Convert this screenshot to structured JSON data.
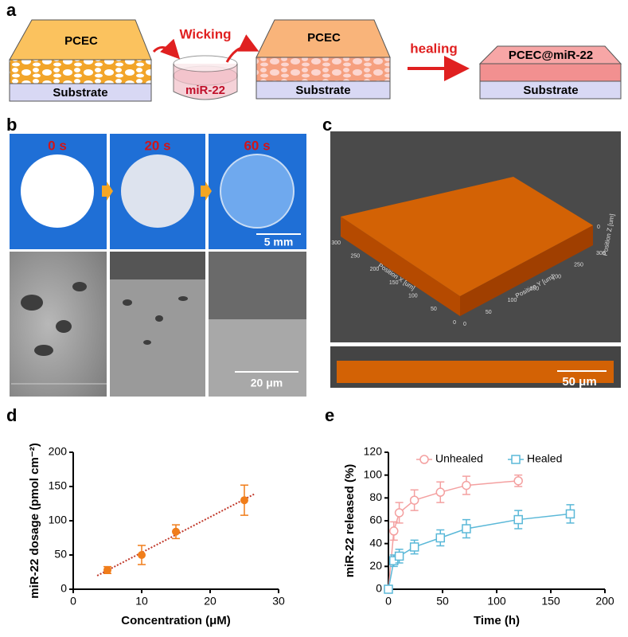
{
  "panels": {
    "a": "a",
    "b": "b",
    "c": "c",
    "d": "d",
    "e": "e"
  },
  "diagram": {
    "pcec1": "PCEC",
    "substrate1": "Substrate",
    "wicking": "Wicking",
    "dish": "miR-22",
    "pcec2": "PCEC",
    "substrate2": "Substrate",
    "healing": "healing",
    "pcec3": "PCEC@miR-22",
    "substrate3": "Substrate"
  },
  "photos": {
    "times": [
      "0 s",
      "20 s",
      "60 s"
    ],
    "scale_top": "5 mm",
    "scale_bottom": "20 μm"
  },
  "confocal": {
    "x_label": "Position X [um]",
    "y_label": "Position Y [um]",
    "z_label": "Position Z [um]",
    "x_ticks": [
      "300",
      "250",
      "200",
      "150",
      "100",
      "50",
      "0"
    ],
    "y_ticks": [
      "0",
      "50",
      "100",
      "150",
      "200",
      "250",
      "300"
    ],
    "z_ticks": [
      "0"
    ],
    "scale": "50 μm"
  },
  "chart_data": [
    {
      "type": "scatter",
      "x_label": "Concentration (μM)",
      "y_label": "miR-22 dosage (pmol cm⁻²)",
      "x": [
        5,
        10,
        15,
        25
      ],
      "values": [
        28,
        50,
        84,
        130
      ],
      "errors": [
        5,
        14,
        10,
        22
      ],
      "color": "#f07d1a",
      "trend_color": "#c0392b",
      "xlim": [
        0,
        30
      ],
      "xticks": [
        0,
        10,
        20,
        30
      ],
      "ylim": [
        0,
        200
      ],
      "yticks": [
        0,
        50,
        100,
        150,
        200
      ]
    },
    {
      "type": "line",
      "x_label": "Time (h)",
      "y_label": "miR-22 released (%)",
      "xlim": [
        0,
        200
      ],
      "xticks": [
        0,
        50,
        100,
        150,
        200
      ],
      "ylim": [
        0,
        120
      ],
      "yticks": [
        0,
        20,
        40,
        60,
        80,
        100,
        120
      ],
      "legend": "top",
      "series": [
        {
          "name": "Unhealed",
          "color": "#f4a0a0",
          "marker": "circle",
          "x": [
            0,
            5,
            10,
            24,
            48,
            72,
            120
          ],
          "values": [
            0,
            51,
            67,
            78,
            85,
            91,
            95
          ],
          "errors": [
            0,
            8,
            9,
            9,
            9,
            8,
            5
          ]
        },
        {
          "name": "Healed",
          "color": "#5ab8d8",
          "marker": "square",
          "x": [
            0,
            5,
            10,
            24,
            48,
            72,
            120,
            168
          ],
          "values": [
            0,
            25,
            29,
            37,
            45,
            53,
            61,
            66
          ],
          "errors": [
            0,
            5,
            6,
            6,
            7,
            8,
            8,
            8
          ]
        }
      ]
    }
  ]
}
